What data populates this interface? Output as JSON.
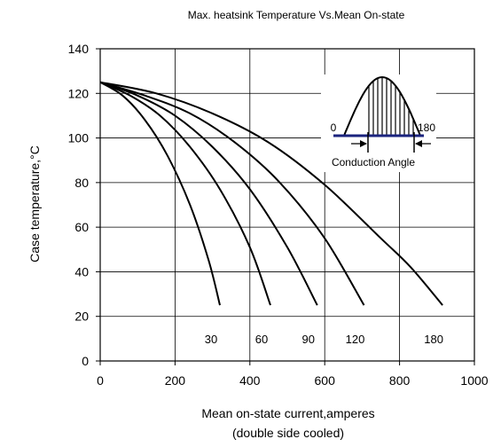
{
  "chart_data": {
    "type": "line",
    "title": "Max. heatsink Temperature Vs.Mean On-state",
    "xlabel": "Mean on-state current,amperes",
    "xlabel_note": "(double side cooled)",
    "ylabel": "Case temperature,°C",
    "xlim": [
      0,
      1000
    ],
    "ylim": [
      0,
      140
    ],
    "xticks": [
      0,
      200,
      400,
      600,
      800,
      1000
    ],
    "yticks": [
      0,
      20,
      40,
      60,
      80,
      100,
      120,
      140
    ],
    "grid": true,
    "series": [
      {
        "name": "30",
        "points": [
          [
            0,
            125
          ],
          [
            60,
            119
          ],
          [
            120,
            108
          ],
          [
            180,
            92
          ],
          [
            240,
            70
          ],
          [
            290,
            45
          ],
          [
            320,
            25
          ]
        ]
      },
      {
        "name": "60",
        "points": [
          [
            0,
            125
          ],
          [
            80,
            119
          ],
          [
            160,
            110
          ],
          [
            240,
            96
          ],
          [
            320,
            77
          ],
          [
            400,
            51
          ],
          [
            455,
            25
          ]
        ]
      },
      {
        "name": "90",
        "points": [
          [
            0,
            125
          ],
          [
            100,
            119
          ],
          [
            200,
            110
          ],
          [
            300,
            96
          ],
          [
            400,
            77
          ],
          [
            500,
            51
          ],
          [
            580,
            25
          ]
        ]
      },
      {
        "name": "120",
        "points": [
          [
            0,
            125
          ],
          [
            120,
            119
          ],
          [
            240,
            111
          ],
          [
            360,
            98
          ],
          [
            480,
            80
          ],
          [
            600,
            55
          ],
          [
            705,
            25
          ]
        ]
      },
      {
        "name": "180",
        "points": [
          [
            0,
            125
          ],
          [
            150,
            120
          ],
          [
            300,
            111
          ],
          [
            450,
            98
          ],
          [
            600,
            79
          ],
          [
            750,
            55
          ],
          [
            830,
            42
          ],
          [
            915,
            25
          ]
        ]
      }
    ],
    "inset": {
      "label_start": "0",
      "label_end": "180",
      "caption": "Conduction Angle"
    }
  }
}
